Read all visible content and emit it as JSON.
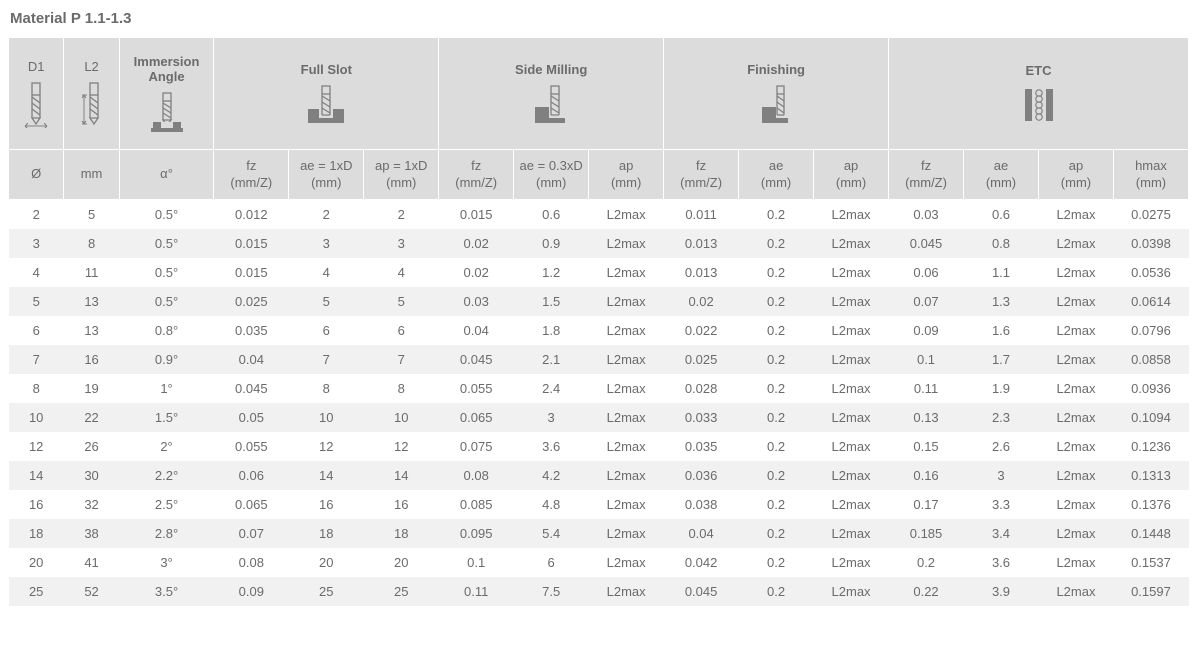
{
  "title": "Material P 1.1-1.3",
  "groups": {
    "d1": {
      "label": "D1",
      "sub": "Ø"
    },
    "l2": {
      "label": "L2",
      "sub": "mm"
    },
    "imm": {
      "label": "Immersion Angle",
      "sub": "α°"
    },
    "fullslot": {
      "label": "Full Slot",
      "subs": [
        "fz\n(mm/Z)",
        "ae = 1xD\n(mm)",
        "ap = 1xD\n(mm)"
      ]
    },
    "side": {
      "label": "Side Milling",
      "subs": [
        "fz\n(mm/Z)",
        "ae = 0.3xD\n(mm)",
        "ap\n(mm)"
      ]
    },
    "fin": {
      "label": "Finishing",
      "subs": [
        "fz\n(mm/Z)",
        "ae\n(mm)",
        "ap\n(mm)"
      ]
    },
    "etc": {
      "label": "ETC",
      "subs": [
        "fz\n(mm/Z)",
        "ae\n(mm)",
        "ap\n(mm)",
        "hmax\n(mm)"
      ]
    }
  },
  "style": {
    "header_bg": "#dcdcdc",
    "row_alt_bg": "#f1f1f1",
    "text_color": "#6b6b6b",
    "border_color": "#ffffff",
    "icon_stroke": "#808080",
    "body_fontsize": 13,
    "title_fontsize": 15
  },
  "rows": [
    [
      "2",
      "5",
      "0.5°",
      "0.012",
      "2",
      "2",
      "0.015",
      "0.6",
      "L2max",
      "0.011",
      "0.2",
      "L2max",
      "0.03",
      "0.6",
      "L2max",
      "0.0275"
    ],
    [
      "3",
      "8",
      "0.5°",
      "0.015",
      "3",
      "3",
      "0.02",
      "0.9",
      "L2max",
      "0.013",
      "0.2",
      "L2max",
      "0.045",
      "0.8",
      "L2max",
      "0.0398"
    ],
    [
      "4",
      "11",
      "0.5°",
      "0.015",
      "4",
      "4",
      "0.02",
      "1.2",
      "L2max",
      "0.013",
      "0.2",
      "L2max",
      "0.06",
      "1.1",
      "L2max",
      "0.0536"
    ],
    [
      "5",
      "13",
      "0.5°",
      "0.025",
      "5",
      "5",
      "0.03",
      "1.5",
      "L2max",
      "0.02",
      "0.2",
      "L2max",
      "0.07",
      "1.3",
      "L2max",
      "0.0614"
    ],
    [
      "6",
      "13",
      "0.8°",
      "0.035",
      "6",
      "6",
      "0.04",
      "1.8",
      "L2max",
      "0.022",
      "0.2",
      "L2max",
      "0.09",
      "1.6",
      "L2max",
      "0.0796"
    ],
    [
      "7",
      "16",
      "0.9°",
      "0.04",
      "7",
      "7",
      "0.045",
      "2.1",
      "L2max",
      "0.025",
      "0.2",
      "L2max",
      "0.1",
      "1.7",
      "L2max",
      "0.0858"
    ],
    [
      "8",
      "19",
      "1°",
      "0.045",
      "8",
      "8",
      "0.055",
      "2.4",
      "L2max",
      "0.028",
      "0.2",
      "L2max",
      "0.11",
      "1.9",
      "L2max",
      "0.0936"
    ],
    [
      "10",
      "22",
      "1.5°",
      "0.05",
      "10",
      "10",
      "0.065",
      "3",
      "L2max",
      "0.033",
      "0.2",
      "L2max",
      "0.13",
      "2.3",
      "L2max",
      "0.1094"
    ],
    [
      "12",
      "26",
      "2°",
      "0.055",
      "12",
      "12",
      "0.075",
      "3.6",
      "L2max",
      "0.035",
      "0.2",
      "L2max",
      "0.15",
      "2.6",
      "L2max",
      "0.1236"
    ],
    [
      "14",
      "30",
      "2.2°",
      "0.06",
      "14",
      "14",
      "0.08",
      "4.2",
      "L2max",
      "0.036",
      "0.2",
      "L2max",
      "0.16",
      "3",
      "L2max",
      "0.1313"
    ],
    [
      "16",
      "32",
      "2.5°",
      "0.065",
      "16",
      "16",
      "0.085",
      "4.8",
      "L2max",
      "0.038",
      "0.2",
      "L2max",
      "0.17",
      "3.3",
      "L2max",
      "0.1376"
    ],
    [
      "18",
      "38",
      "2.8°",
      "0.07",
      "18",
      "18",
      "0.095",
      "5.4",
      "L2max",
      "0.04",
      "0.2",
      "L2max",
      "0.185",
      "3.4",
      "L2max",
      "0.1448"
    ],
    [
      "20",
      "41",
      "3°",
      "0.08",
      "20",
      "20",
      "0.1",
      "6",
      "L2max",
      "0.042",
      "0.2",
      "L2max",
      "0.2",
      "3.6",
      "L2max",
      "0.1537"
    ],
    [
      "25",
      "52",
      "3.5°",
      "0.09",
      "25",
      "25",
      "0.11",
      "7.5",
      "L2max",
      "0.045",
      "0.2",
      "L2max",
      "0.22",
      "3.9",
      "L2max",
      "0.1597"
    ]
  ]
}
